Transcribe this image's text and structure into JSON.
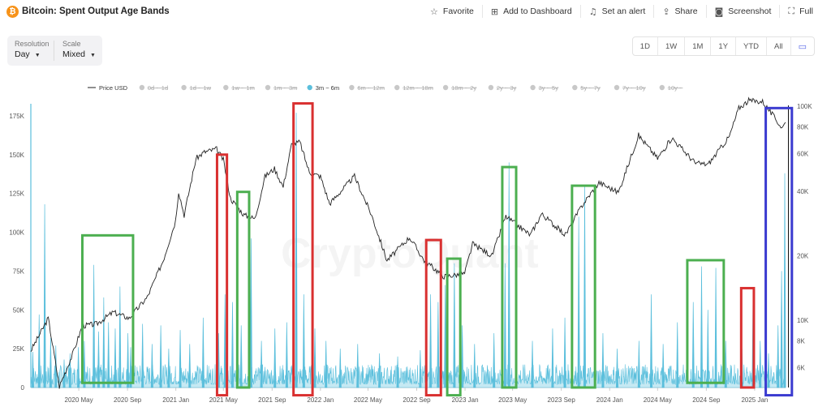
{
  "header": {
    "logo_glyph": "₿",
    "title": "Bitcoin: Spent Output Age Bands",
    "actions": [
      {
        "label": "Favorite",
        "icon": "star-icon",
        "glyph": "☆"
      },
      {
        "label": "Add to Dashboard",
        "icon": "dashboard-add-icon",
        "glyph": "⊞"
      },
      {
        "label": "Set an alert",
        "icon": "bell-icon",
        "glyph": "♫"
      },
      {
        "label": "Share",
        "icon": "share-icon",
        "glyph": "⇪"
      },
      {
        "label": "Screenshot",
        "icon": "camera-icon",
        "glyph": "◙"
      },
      {
        "label": "Full",
        "icon": "fullscreen-icon",
        "glyph": "⛶"
      }
    ]
  },
  "controls": {
    "resolution_label": "Resolution",
    "resolution_value": "Day",
    "scale_label": "Scale",
    "scale_value": "Mixed"
  },
  "ranges": [
    "1D",
    "1W",
    "1M",
    "1Y",
    "YTD",
    "All"
  ],
  "calendar_icon": "calendar-icon",
  "watermark": "CryptoQuant",
  "colors": {
    "price": "#222222",
    "band": "#5bbfdc",
    "green_box": "#4caf50",
    "red_box": "#d93030",
    "blue_box": "#3b3bd0",
    "accent": "#5b6be8"
  },
  "chart_data": {
    "type": "line",
    "legend": [
      {
        "name": "Price USD",
        "active": true
      },
      {
        "name": "0d ~ 1d",
        "active": false
      },
      {
        "name": "1d ~ 1w",
        "active": false
      },
      {
        "name": "1w ~ 1m",
        "active": false
      },
      {
        "name": "1m ~ 3m",
        "active": false
      },
      {
        "name": "3m ~ 6m",
        "active": true
      },
      {
        "name": "6m ~ 12m",
        "active": false
      },
      {
        "name": "12m ~ 18m",
        "active": false
      },
      {
        "name": "18m ~ 2y",
        "active": false
      },
      {
        "name": "2y ~ 3y",
        "active": false
      },
      {
        "name": "3y ~ 5y",
        "active": false
      },
      {
        "name": "5y ~ 7y",
        "active": false
      },
      {
        "name": "7y ~ 10y",
        "active": false
      },
      {
        "name": "10y ~",
        "active": false
      }
    ],
    "legend_position": "top",
    "x_ticks": [
      "2020 May",
      "2020 Sep",
      "2021 Jan",
      "2021 May",
      "2021 Sep",
      "2022 Jan",
      "2022 May",
      "2022 Sep",
      "2023 Jan",
      "2023 May",
      "2023 Sep",
      "2024 Jan",
      "2024 May",
      "2024 Sep",
      "2025 Jan"
    ],
    "x_range": [
      "2020-01-01",
      "2025-03-20"
    ],
    "y_left_ticks": [
      "0",
      "25K",
      "50K",
      "75K",
      "100K",
      "125K",
      "150K",
      "175K"
    ],
    "y_left_range": [
      0,
      188000
    ],
    "y_right_ticks": [
      "100K",
      "80K",
      "60K",
      "40K",
      "20K",
      "10K",
      "8K",
      "6K"
    ],
    "y_right_scale": "log",
    "y_right_range": [
      4000,
      110000
    ],
    "series": [
      {
        "name": "Price USD",
        "axis": "right",
        "points": [
          [
            "2020-01-01",
            7200
          ],
          [
            "2020-02-14",
            10200
          ],
          [
            "2020-03-13",
            4900
          ],
          [
            "2020-04-15",
            6900
          ],
          [
            "2020-05-10",
            9400
          ],
          [
            "2020-06-15",
            9600
          ],
          [
            "2020-07-27",
            10900
          ],
          [
            "2020-09-05",
            10200
          ],
          [
            "2020-10-21",
            12800
          ],
          [
            "2020-11-30",
            19000
          ],
          [
            "2020-12-31",
            29000
          ],
          [
            "2021-01-08",
            40000
          ],
          [
            "2021-01-22",
            31000
          ],
          [
            "2021-02-21",
            57000
          ],
          [
            "2021-03-14",
            61000
          ],
          [
            "2021-04-14",
            63000
          ],
          [
            "2021-05-01",
            56000
          ],
          [
            "2021-05-19",
            37000
          ],
          [
            "2021-06-22",
            31000
          ],
          [
            "2021-07-20",
            29800
          ],
          [
            "2021-08-14",
            47000
          ],
          [
            "2021-09-07",
            51000
          ],
          [
            "2021-09-29",
            42000
          ],
          [
            "2021-10-20",
            66000
          ],
          [
            "2021-11-10",
            68000
          ],
          [
            "2021-12-04",
            49000
          ],
          [
            "2022-01-01",
            47000
          ],
          [
            "2022-01-24",
            35000
          ],
          [
            "2022-03-28",
            47000
          ],
          [
            "2022-05-10",
            31000
          ],
          [
            "2022-06-18",
            19000
          ],
          [
            "2022-08-14",
            24400
          ],
          [
            "2022-09-20",
            19000
          ],
          [
            "2022-11-09",
            16000
          ],
          [
            "2022-12-31",
            16500
          ],
          [
            "2023-01-20",
            22700
          ],
          [
            "2023-03-10",
            20000
          ],
          [
            "2023-04-14",
            30500
          ],
          [
            "2023-06-15",
            25000
          ],
          [
            "2023-07-13",
            31400
          ],
          [
            "2023-09-11",
            25000
          ],
          [
            "2023-10-24",
            34500
          ],
          [
            "2023-12-05",
            44000
          ],
          [
            "2024-01-23",
            39500
          ],
          [
            "2024-03-14",
            73000
          ],
          [
            "2024-05-01",
            57000
          ],
          [
            "2024-06-06",
            71000
          ],
          [
            "2024-08-05",
            54000
          ],
          [
            "2024-09-06",
            53500
          ],
          [
            "2024-10-29",
            72000
          ],
          [
            "2024-11-22",
            98000
          ],
          [
            "2024-12-17",
            106000
          ],
          [
            "2025-01-21",
            105000
          ],
          [
            "2025-02-25",
            86000
          ],
          [
            "2025-03-11",
            79000
          ],
          [
            "2025-03-20",
            84000
          ]
        ]
      },
      {
        "name": "3m ~ 6m",
        "axis": "left",
        "baseline_range": [
          2000,
          15000
        ],
        "spikes": [
          [
            "2020-01-06",
            23000
          ],
          [
            "2020-01-22",
            47000
          ],
          [
            "2020-02-05",
            118000
          ],
          [
            "2020-02-20",
            32000
          ],
          [
            "2020-03-04",
            27000
          ],
          [
            "2020-03-25",
            18000
          ],
          [
            "2020-04-09",
            22000
          ],
          [
            "2020-04-30",
            26000
          ],
          [
            "2020-05-15",
            30000
          ],
          [
            "2020-06-08",
            79000
          ],
          [
            "2020-06-20",
            36000
          ],
          [
            "2020-07-03",
            58000
          ],
          [
            "2020-07-15",
            42000
          ],
          [
            "2020-08-01",
            38000
          ],
          [
            "2020-08-13",
            65000
          ],
          [
            "2020-09-02",
            35000
          ],
          [
            "2020-09-09",
            26000
          ],
          [
            "2020-10-09",
            41000
          ],
          [
            "2020-11-02",
            28000
          ],
          [
            "2020-11-24",
            40000
          ],
          [
            "2020-12-14",
            25000
          ],
          [
            "2021-01-12",
            37000
          ],
          [
            "2021-02-05",
            28000
          ],
          [
            "2021-03-11",
            45000
          ],
          [
            "2021-04-19",
            35000
          ],
          [
            "2021-05-05",
            60000
          ],
          [
            "2021-05-24",
            55000
          ],
          [
            "2021-06-15",
            40000
          ],
          [
            "2021-07-10",
            96000
          ],
          [
            "2021-08-05",
            30000
          ],
          [
            "2021-09-08",
            38000
          ],
          [
            "2021-10-08",
            42000
          ],
          [
            "2021-11-01",
            177000
          ],
          [
            "2021-11-20",
            60000
          ],
          [
            "2021-12-18",
            38000
          ],
          [
            "2022-01-15",
            30000
          ],
          [
            "2022-02-20",
            25000
          ],
          [
            "2022-04-05",
            28000
          ],
          [
            "2022-05-30",
            22000
          ],
          [
            "2022-07-15",
            20000
          ],
          [
            "2022-09-10",
            24000
          ],
          [
            "2022-10-06",
            60000
          ],
          [
            "2022-10-25",
            55000
          ],
          [
            "2022-11-12",
            66000
          ],
          [
            "2022-12-05",
            80000
          ],
          [
            "2022-12-25",
            40000
          ],
          [
            "2023-01-25",
            28000
          ],
          [
            "2023-03-15",
            35000
          ],
          [
            "2023-04-12",
            80000
          ],
          [
            "2023-04-22",
            145000
          ],
          [
            "2023-05-10",
            58000
          ],
          [
            "2023-06-20",
            30000
          ],
          [
            "2023-08-10",
            38000
          ],
          [
            "2023-09-10",
            45000
          ],
          [
            "2023-10-15",
            110000
          ],
          [
            "2023-10-30",
            130000
          ],
          [
            "2023-12-15",
            35000
          ],
          [
            "2024-01-20",
            25000
          ],
          [
            "2024-03-15",
            30000
          ],
          [
            "2024-04-15",
            60000
          ],
          [
            "2024-05-15",
            28000
          ],
          [
            "2024-06-20",
            42000
          ],
          [
            "2024-07-30",
            55000
          ],
          [
            "2024-08-20",
            78000
          ],
          [
            "2024-09-05",
            50000
          ],
          [
            "2024-09-25",
            77000
          ],
          [
            "2024-10-20",
            30000
          ],
          [
            "2024-11-30",
            25000
          ],
          [
            "2024-12-28",
            60000
          ],
          [
            "2025-01-15",
            30000
          ],
          [
            "2025-02-05",
            22000
          ],
          [
            "2025-03-01",
            40000
          ],
          [
            "2025-03-10",
            75000
          ],
          [
            "2025-03-18",
            138000
          ]
        ]
      }
    ],
    "annotations": [
      {
        "shape": "rect",
        "color": "green",
        "x_range": [
          "2020-05-10",
          "2020-09-15"
        ],
        "y_range": [
          3000,
          98000
        ]
      },
      {
        "shape": "rect",
        "color": "red",
        "x_range": [
          "2021-04-15",
          "2021-05-10"
        ],
        "y_range": [
          -5000,
          150000
        ]
      },
      {
        "shape": "rect",
        "color": "green",
        "x_range": [
          "2021-06-05",
          "2021-07-05"
        ],
        "y_range": [
          0,
          126000
        ]
      },
      {
        "shape": "rect",
        "color": "red",
        "x_range": [
          "2021-10-25",
          "2021-12-12"
        ],
        "y_range": [
          -5000,
          183000
        ]
      },
      {
        "shape": "rect",
        "color": "red",
        "x_range": [
          "2022-09-25",
          "2022-11-01"
        ],
        "y_range": [
          -5000,
          95000
        ]
      },
      {
        "shape": "rect",
        "color": "green",
        "x_range": [
          "2022-11-17",
          "2022-12-20"
        ],
        "y_range": [
          -5000,
          83000
        ]
      },
      {
        "shape": "rect",
        "color": "green",
        "x_range": [
          "2023-04-05",
          "2023-05-10"
        ],
        "y_range": [
          0,
          142000
        ]
      },
      {
        "shape": "rect",
        "color": "green",
        "x_range": [
          "2023-09-28",
          "2023-11-25"
        ],
        "y_range": [
          0,
          130000
        ]
      },
      {
        "shape": "rect",
        "color": "green",
        "x_range": [
          "2024-07-15",
          "2024-10-15"
        ],
        "y_range": [
          3000,
          82000
        ]
      },
      {
        "shape": "rect",
        "color": "red",
        "x_range": [
          "2024-11-28",
          "2024-12-30"
        ],
        "y_range": [
          0,
          64000
        ]
      },
      {
        "shape": "rect",
        "color": "blue",
        "x_range": [
          "2025-01-29",
          "2025-04-05"
        ],
        "y_range": [
          -5000,
          180000
        ]
      }
    ]
  }
}
